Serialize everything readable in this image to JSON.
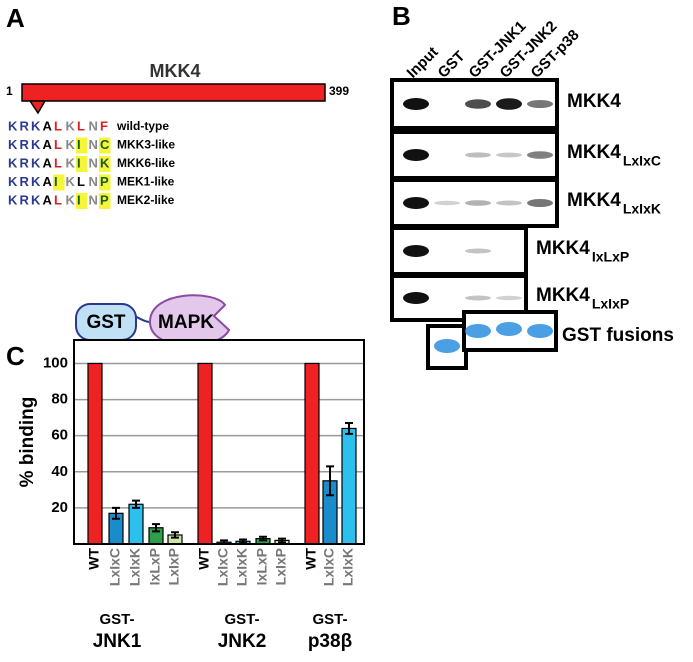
{
  "panel_a": {
    "label": "A",
    "protein": "MKK4",
    "start": "1",
    "end": "399",
    "sequences": [
      {
        "residues": [
          "K",
          "R",
          "K",
          "A",
          "L",
          "K",
          "L",
          "N",
          "F"
        ],
        "colors": [
          "#2b3a8e",
          "#2b3a8e",
          "#2b3a8e",
          "#000000",
          "#e02020",
          "#888888",
          "#e02020",
          "#888888",
          "#e02020"
        ],
        "highlight": [
          false,
          false,
          false,
          false,
          false,
          false,
          false,
          false,
          false
        ],
        "name": "wild-type"
      },
      {
        "residues": [
          "K",
          "R",
          "K",
          "A",
          "L",
          "K",
          "I",
          "N",
          "C"
        ],
        "colors": [
          "#2b3a8e",
          "#2b3a8e",
          "#2b3a8e",
          "#000000",
          "#e02020",
          "#888888",
          "#1a5a1a",
          "#888888",
          "#1a5a1a"
        ],
        "highlight": [
          false,
          false,
          false,
          false,
          false,
          false,
          true,
          false,
          true
        ],
        "name": "MKK3-like"
      },
      {
        "residues": [
          "K",
          "R",
          "K",
          "A",
          "L",
          "K",
          "I",
          "N",
          "K"
        ],
        "colors": [
          "#2b3a8e",
          "#2b3a8e",
          "#2b3a8e",
          "#000000",
          "#e02020",
          "#888888",
          "#1a5a1a",
          "#888888",
          "#1a5a1a"
        ],
        "highlight": [
          false,
          false,
          false,
          false,
          false,
          false,
          true,
          false,
          true
        ],
        "name": "MKK6-like"
      },
      {
        "residues": [
          "K",
          "R",
          "K",
          "A",
          "I",
          "K",
          "L",
          "N",
          "P"
        ],
        "colors": [
          "#2b3a8e",
          "#2b3a8e",
          "#2b3a8e",
          "#000000",
          "#1a5a1a",
          "#888888",
          "#000000",
          "#888888",
          "#1a5a1a"
        ],
        "highlight": [
          false,
          false,
          false,
          false,
          true,
          false,
          false,
          false,
          true
        ],
        "name": "MEK1-like"
      },
      {
        "residues": [
          "K",
          "R",
          "K",
          "A",
          "L",
          "K",
          "I",
          "N",
          "P"
        ],
        "colors": [
          "#2b3a8e",
          "#2b3a8e",
          "#2b3a8e",
          "#000000",
          "#e02020",
          "#888888",
          "#1a5a1a",
          "#888888",
          "#1a5a1a"
        ],
        "highlight": [
          false,
          false,
          false,
          false,
          false,
          false,
          true,
          false,
          true
        ],
        "name": "MEK2-like"
      }
    ],
    "gst": "GST",
    "mapk": "MAPK"
  },
  "panel_b": {
    "label": "B",
    "lanes": [
      "Input",
      "GST",
      "GST-JNK1",
      "GST-JNK2",
      "GST-p38"
    ],
    "rows": [
      {
        "name": "MKK4"
      },
      {
        "name": "MKK4",
        "subscript": "LxIxC"
      },
      {
        "name": "MKK4",
        "subscript": "LxIxK"
      },
      {
        "name": "MKK4",
        "subscript": "IxLxP"
      },
      {
        "name": "MKK4",
        "subscript": "LxIxP"
      }
    ],
    "stain": "GST fusions"
  },
  "chart_data": {
    "type": "bar",
    "label": "C",
    "ylabel": "% binding",
    "ylim": [
      0,
      113
    ],
    "yticks": [
      20,
      40,
      60,
      80,
      100
    ],
    "grid": true,
    "groups": [
      {
        "name": [
          "GST-",
          "JNK1"
        ],
        "categories": [
          "WT",
          "LxIxC",
          "LxIxK",
          "IxLxP",
          "LxIxP"
        ],
        "values": [
          100,
          17,
          22,
          9,
          5
        ],
        "errors": [
          null,
          3,
          2,
          2,
          1.5
        ],
        "colors": [
          "#ee2222",
          "#1a8ccc",
          "#2cc0ee",
          "#2e9e4a",
          "#cfe6a8"
        ]
      },
      {
        "name": [
          "GST-",
          "JNK2"
        ],
        "categories": [
          "WT",
          "LxIxC",
          "LxIxK",
          "IxLxP",
          "LxIxP"
        ],
        "values": [
          100,
          1,
          1.5,
          3,
          2
        ],
        "errors": [
          null,
          1,
          1,
          1,
          1
        ],
        "colors": [
          "#ee2222",
          "#1a8ccc",
          "#2cc0ee",
          "#2e9e4a",
          "#cfe6a8"
        ]
      },
      {
        "name": [
          "GST-",
          "p38β"
        ],
        "categories": [
          "WT",
          "LxIxC",
          "LxIxK"
        ],
        "values": [
          100,
          35,
          64
        ],
        "errors": [
          null,
          8,
          3
        ],
        "colors": [
          "#ee2222",
          "#1a8ccc",
          "#2cc0ee"
        ]
      }
    ]
  }
}
